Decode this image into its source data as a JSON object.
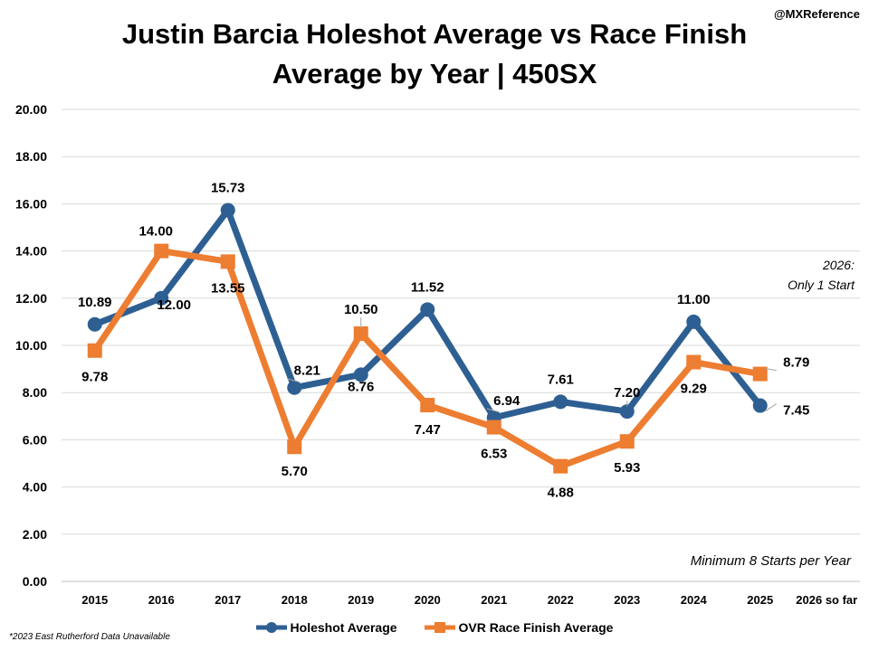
{
  "chart_data": {
    "type": "line",
    "title": [
      "Justin Barcia Holeshot Average vs Race Finish",
      "Average by Year | 450SX"
    ],
    "categories": [
      "2015",
      "2016",
      "2017",
      "2018",
      "2019",
      "2020",
      "2021",
      "2022",
      "2023",
      "2024",
      "2025",
      "2026 so far"
    ],
    "series": [
      {
        "name": "Holeshot Average",
        "color": "#2e5f92",
        "marker": "circle",
        "values": [
          10.89,
          12.0,
          15.73,
          8.21,
          8.76,
          11.52,
          6.94,
          7.61,
          7.2,
          11.0,
          7.45,
          null
        ],
        "labels": [
          "10.89",
          "12.00",
          "15.73",
          "8.21",
          "8.76",
          "11.52",
          "6.94",
          "7.61",
          "7.20",
          "11.00",
          "7.45",
          ""
        ]
      },
      {
        "name": "OVR Race Finish Average",
        "color": "#ed7d31",
        "marker": "square",
        "values": [
          9.78,
          14.0,
          13.55,
          5.7,
          10.5,
          7.47,
          6.53,
          4.88,
          5.93,
          9.29,
          8.79,
          null
        ],
        "labels": [
          "9.78",
          "14.00",
          "13.55",
          "5.70",
          "10.50",
          "7.47",
          "6.53",
          "4.88",
          "5.93",
          "9.29",
          "8.79",
          ""
        ]
      }
    ],
    "ylim": [
      0,
      20
    ],
    "yticks": [
      "0.00",
      "2.00",
      "4.00",
      "6.00",
      "8.00",
      "10.00",
      "12.00",
      "14.00",
      "16.00",
      "18.00",
      "20.00"
    ],
    "grid": true,
    "legend": "bottom"
  },
  "annotations": {
    "credit": "@MXReference",
    "note_2026_line1": "2026:",
    "note_2026_line2": "Only 1 Start",
    "min_starts": "Minimum 8 Starts per Year",
    "footnote": "*2023 East Rutherford Data Unavailable"
  },
  "colors": {
    "grid": "#d9d9d9"
  }
}
